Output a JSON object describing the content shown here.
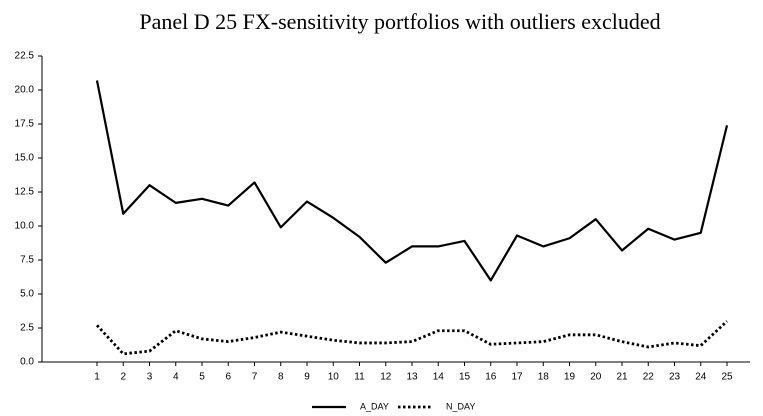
{
  "chart_data": {
    "type": "line",
    "title": "Panel D 25 FX-sensitivity portfolios with outliers excluded",
    "categories": [
      "1",
      "2",
      "3",
      "4",
      "5",
      "6",
      "7",
      "8",
      "9",
      "10",
      "11",
      "12",
      "13",
      "14",
      "15",
      "16",
      "17",
      "18",
      "19",
      "20",
      "21",
      "22",
      "23",
      "24",
      "25"
    ],
    "series": [
      {
        "name": "A_DAY",
        "color": "#000000",
        "dash": "solid",
        "values": [
          20.7,
          10.9,
          13.0,
          11.7,
          12.0,
          11.5,
          13.2,
          9.9,
          11.8,
          10.6,
          9.2,
          7.3,
          8.5,
          8.5,
          8.9,
          6.0,
          9.3,
          8.5,
          9.1,
          10.5,
          8.2,
          9.8,
          9.0,
          9.5,
          17.4
        ]
      },
      {
        "name": "N_DAY",
        "color": "#000000",
        "dash": "dotted",
        "values": [
          2.7,
          0.6,
          0.8,
          2.3,
          1.7,
          1.5,
          1.8,
          2.2,
          1.9,
          1.6,
          1.4,
          1.4,
          1.5,
          2.3,
          2.3,
          1.3,
          1.4,
          1.5,
          2.0,
          2.0,
          1.5,
          1.1,
          1.4,
          1.2,
          3.0
        ]
      }
    ],
    "ylim": [
      0,
      22.5
    ],
    "yticks": [
      {
        "value": 0,
        "label": "0.0"
      },
      2.5,
      {
        "value": 5,
        "label": "5.0"
      },
      7.5,
      {
        "value": 10,
        "label": "10.0"
      },
      12.5,
      {
        "value": 15,
        "label": "15.0"
      },
      17.5,
      {
        "value": 20,
        "label": "20.0"
      },
      22.5
    ],
    "grid": false,
    "legend": "bottom"
  }
}
